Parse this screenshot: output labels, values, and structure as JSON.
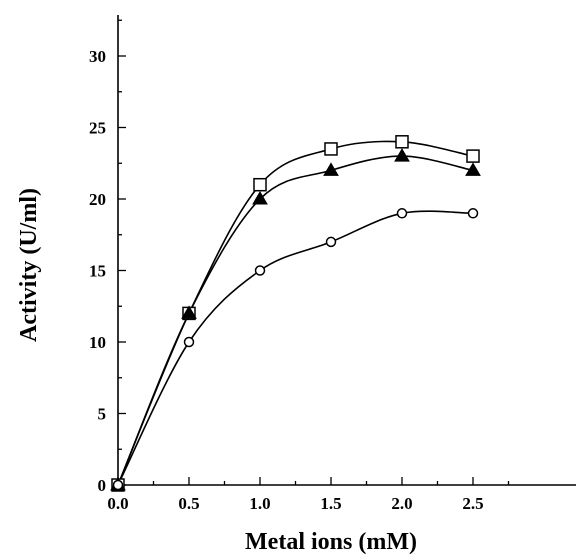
{
  "chart_data": {
    "type": "line",
    "title": "",
    "xlabel": "Metal ions (mM)",
    "ylabel": "Activity (U/ml)",
    "xlim": [
      0,
      2.75
    ],
    "ylim": [
      0,
      32.5
    ],
    "x": [
      0.0,
      0.5,
      1.0,
      1.5,
      2.0,
      2.5
    ],
    "x_ticks": [
      0.0,
      0.5,
      1.0,
      1.5,
      2.0,
      2.5
    ],
    "x_tick_labels": [
      "0.0",
      "0.5",
      "1.0",
      "1.5",
      "2.0",
      "2.5"
    ],
    "y_ticks": [
      0,
      5,
      10,
      15,
      20,
      25,
      30
    ],
    "y_tick_labels": [
      "0",
      "5",
      "10",
      "15",
      "20",
      "25",
      "30"
    ],
    "grid": false,
    "legend": "none",
    "series": [
      {
        "marker": "open-square",
        "values": [
          0,
          12,
          21,
          23.5,
          24,
          23
        ]
      },
      {
        "marker": "filled-triangle",
        "values": [
          0,
          12,
          20,
          22,
          23,
          22
        ]
      },
      {
        "marker": "open-circle",
        "values": [
          0,
          10,
          15,
          17,
          19,
          19
        ]
      }
    ]
  }
}
